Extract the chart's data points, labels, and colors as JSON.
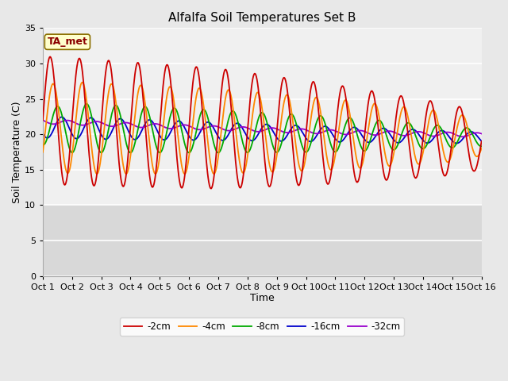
{
  "title": "Alfalfa Soil Temperatures Set B",
  "xlabel": "Time",
  "ylabel": "Soil Temperature (C)",
  "ylim": [
    0,
    35
  ],
  "xlim": [
    0,
    15
  ],
  "xtick_labels": [
    "Oct 1",
    "Oct 2",
    "Oct 3",
    "Oct 4",
    "Oct 5",
    "Oct 6",
    "Oct 7",
    "Oct 8",
    "Oct 9",
    "Oct 10",
    "Oct 11",
    "Oct 12",
    "Oct 13",
    "Oct 14",
    "Oct 15",
    "Oct 16"
  ],
  "ytick_vals": [
    0,
    5,
    10,
    15,
    20,
    25,
    30,
    35
  ],
  "annotation_text": "TA_met",
  "annotation_color": "#8B0000",
  "annotation_bg": "#FFFFCC",
  "series_colors": [
    "#CC0000",
    "#FF8800",
    "#00AA00",
    "#0000CC",
    "#9900CC"
  ],
  "series_labels": [
    "-2cm",
    "-4cm",
    "-8cm",
    "-16cm",
    "-32cm"
  ],
  "background_color": "#E8E8E8",
  "plot_bg_upper": "#F0F0F0",
  "plot_bg_lower": "#D8D8D8",
  "grid_color": "#FFFFFF",
  "title_fontsize": 11,
  "axis_fontsize": 9,
  "tick_fontsize": 8
}
